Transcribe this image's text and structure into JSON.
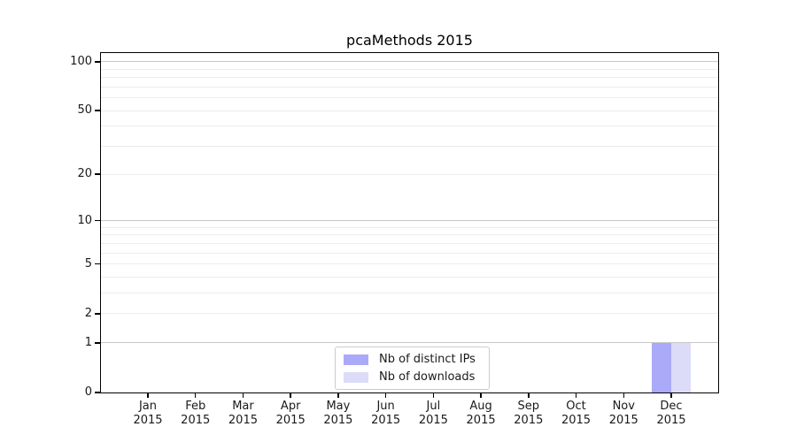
{
  "figure": {
    "background": "#ffffff"
  },
  "chart_data": {
    "type": "bar",
    "title": "pcaMethods 2015",
    "categories": [
      "Jan 2015",
      "Feb 2015",
      "Mar 2015",
      "Apr 2015",
      "May 2015",
      "Jun 2015",
      "Jul 2015",
      "Aug 2015",
      "Sep 2015",
      "Oct 2015",
      "Nov 2015",
      "Dec 2015"
    ],
    "series": [
      {
        "name": "Nb of distinct IPs",
        "color": "#aaaaf8",
        "values": [
          0,
          0,
          0,
          0,
          0,
          0,
          0,
          0,
          0,
          0,
          0,
          1
        ]
      },
      {
        "name": "Nb of downloads",
        "color": "#dcdcf8",
        "values": [
          0,
          0,
          0,
          0,
          0,
          0,
          0,
          0,
          0,
          0,
          0,
          1
        ]
      }
    ],
    "xlabel": "",
    "ylabel": "",
    "yscale": "log1p",
    "ylim": [
      0,
      113
    ],
    "yticks": [
      0,
      1,
      2,
      5,
      10,
      20,
      50,
      100
    ],
    "minor_yticks": [
      3,
      4,
      6,
      7,
      8,
      9,
      30,
      40,
      60,
      70,
      80,
      90
    ],
    "grid": true,
    "legend_position": "bottom-center",
    "colors": {
      "decade_gridline": "#c8c8c8",
      "light_gridline": "#ededed",
      "spine": "#000000",
      "legend_border": "#cccccc",
      "text": "#000000"
    }
  }
}
